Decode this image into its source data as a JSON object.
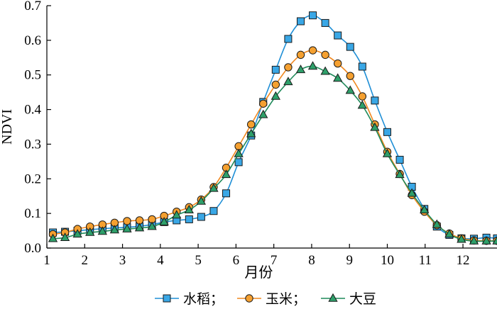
{
  "chart_data": {
    "type": "line",
    "xlabel": "月份",
    "ylabel": "NDVI",
    "xlim": [
      1,
      12.9
    ],
    "ylim": [
      0,
      0.7
    ],
    "x_ticks": [
      1,
      2,
      3,
      4,
      5,
      6,
      7,
      8,
      9,
      10,
      11,
      12
    ],
    "y_ticks": [
      0.0,
      0.1,
      0.2,
      0.3,
      0.4,
      0.5,
      0.6,
      0.7
    ],
    "y_tick_labels": [
      "0.0",
      "0.1",
      "0.2",
      "0.3",
      "0.4",
      "0.5",
      "0.6",
      "0.7"
    ],
    "legend_position": "bottom",
    "series": [
      {
        "name": "水稻；",
        "color": "#1f8fd6",
        "fill": "#39a7e6",
        "marker": "square",
        "points": [
          [
            1.16,
            0.045
          ],
          [
            1.48,
            0.047
          ],
          [
            1.81,
            0.05
          ],
          [
            2.14,
            0.053
          ],
          [
            2.47,
            0.056
          ],
          [
            2.79,
            0.058
          ],
          [
            3.12,
            0.06
          ],
          [
            3.45,
            0.063
          ],
          [
            3.78,
            0.068
          ],
          [
            4.1,
            0.075
          ],
          [
            4.43,
            0.08
          ],
          [
            4.76,
            0.083
          ],
          [
            5.08,
            0.09
          ],
          [
            5.41,
            0.107
          ],
          [
            5.74,
            0.158
          ],
          [
            6.07,
            0.248
          ],
          [
            6.4,
            0.325
          ],
          [
            6.72,
            0.422
          ],
          [
            7.05,
            0.515
          ],
          [
            7.38,
            0.604
          ],
          [
            7.71,
            0.655
          ],
          [
            8.03,
            0.672
          ],
          [
            8.36,
            0.65
          ],
          [
            8.69,
            0.614
          ],
          [
            9.02,
            0.581
          ],
          [
            9.34,
            0.524
          ],
          [
            9.67,
            0.426
          ],
          [
            10.0,
            0.335
          ],
          [
            10.33,
            0.255
          ],
          [
            10.65,
            0.177
          ],
          [
            10.98,
            0.113
          ],
          [
            11.31,
            0.062
          ],
          [
            11.64,
            0.038
          ],
          [
            11.96,
            0.028
          ],
          [
            12.29,
            0.027
          ],
          [
            12.62,
            0.03
          ],
          [
            12.9,
            0.028
          ]
        ]
      },
      {
        "name": "玉米；",
        "color": "#f0871e",
        "fill": "#f5a030",
        "marker": "circle",
        "points": [
          [
            1.16,
            0.04
          ],
          [
            1.48,
            0.045
          ],
          [
            1.81,
            0.055
          ],
          [
            2.14,
            0.062
          ],
          [
            2.47,
            0.068
          ],
          [
            2.79,
            0.073
          ],
          [
            3.12,
            0.078
          ],
          [
            3.45,
            0.08
          ],
          [
            3.78,
            0.083
          ],
          [
            4.1,
            0.093
          ],
          [
            4.43,
            0.105
          ],
          [
            4.76,
            0.118
          ],
          [
            5.08,
            0.14
          ],
          [
            5.41,
            0.176
          ],
          [
            5.74,
            0.232
          ],
          [
            6.07,
            0.294
          ],
          [
            6.4,
            0.357
          ],
          [
            6.72,
            0.417
          ],
          [
            7.05,
            0.472
          ],
          [
            7.38,
            0.522
          ],
          [
            7.71,
            0.558
          ],
          [
            8.03,
            0.571
          ],
          [
            8.36,
            0.558
          ],
          [
            8.69,
            0.533
          ],
          [
            9.02,
            0.497
          ],
          [
            9.34,
            0.438
          ],
          [
            9.67,
            0.357
          ],
          [
            10.0,
            0.278
          ],
          [
            10.33,
            0.214
          ],
          [
            10.65,
            0.153
          ],
          [
            10.98,
            0.105
          ],
          [
            11.31,
            0.066
          ],
          [
            11.64,
            0.042
          ],
          [
            11.96,
            0.028
          ],
          [
            12.29,
            0.022
          ],
          [
            12.62,
            0.021
          ],
          [
            12.9,
            0.021
          ]
        ]
      },
      {
        "name": "大豆",
        "color": "#1f8a5a",
        "fill": "#2ea06a",
        "marker": "triangle",
        "points": [
          [
            1.16,
            0.027
          ],
          [
            1.48,
            0.03
          ],
          [
            1.81,
            0.04
          ],
          [
            2.14,
            0.045
          ],
          [
            2.47,
            0.048
          ],
          [
            2.79,
            0.052
          ],
          [
            3.12,
            0.055
          ],
          [
            3.45,
            0.058
          ],
          [
            3.78,
            0.062
          ],
          [
            4.1,
            0.075
          ],
          [
            4.43,
            0.095
          ],
          [
            4.76,
            0.11
          ],
          [
            5.08,
            0.135
          ],
          [
            5.41,
            0.172
          ],
          [
            5.74,
            0.212
          ],
          [
            6.07,
            0.272
          ],
          [
            6.4,
            0.33
          ],
          [
            6.72,
            0.385
          ],
          [
            7.05,
            0.438
          ],
          [
            7.38,
            0.48
          ],
          [
            7.71,
            0.515
          ],
          [
            8.03,
            0.525
          ],
          [
            8.36,
            0.51
          ],
          [
            8.69,
            0.49
          ],
          [
            9.02,
            0.455
          ],
          [
            9.34,
            0.412
          ],
          [
            9.67,
            0.348
          ],
          [
            10.0,
            0.272
          ],
          [
            10.33,
            0.212
          ],
          [
            10.65,
            0.158
          ],
          [
            10.98,
            0.11
          ],
          [
            11.31,
            0.068
          ],
          [
            11.64,
            0.04
          ],
          [
            11.96,
            0.025
          ],
          [
            12.29,
            0.02
          ],
          [
            12.62,
            0.02
          ],
          [
            12.9,
            0.02
          ]
        ]
      }
    ]
  }
}
